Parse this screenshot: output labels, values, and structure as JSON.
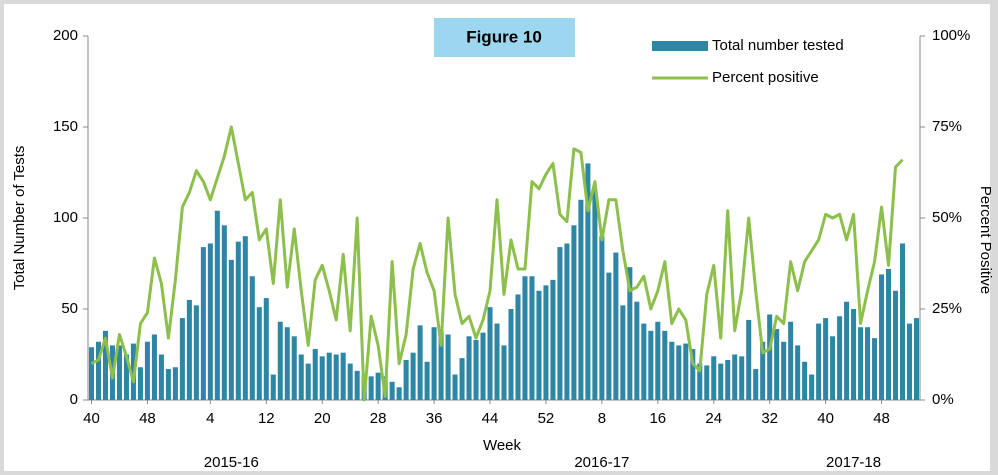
{
  "chart_data": {
    "type": "bar",
    "figure_label": "Figure 10",
    "x_label": "Week",
    "y_label": "Total Number of Tests",
    "y2_label": "Percent Positive",
    "season_labels": [
      "2015-16",
      "2016-17",
      "2017-18"
    ],
    "categories": [
      "40",
      null,
      null,
      null,
      null,
      null,
      null,
      null,
      "48",
      null,
      null,
      null,
      null,
      null,
      null,
      null,
      null,
      "4",
      null,
      null,
      null,
      null,
      null,
      null,
      null,
      "12",
      null,
      null,
      null,
      null,
      null,
      null,
      null,
      "20",
      null,
      null,
      null,
      null,
      null,
      null,
      null,
      "28",
      null,
      null,
      null,
      null,
      null,
      null,
      null,
      "36",
      null,
      null,
      null,
      null,
      null,
      null,
      null,
      "44",
      null,
      null,
      null,
      null,
      null,
      null,
      null,
      "52",
      null,
      null,
      null,
      null,
      null,
      null,
      null,
      "8",
      null,
      null,
      null,
      null,
      null,
      null,
      null,
      "16",
      null,
      null,
      null,
      null,
      null,
      null,
      null,
      "24",
      null,
      null,
      null,
      null,
      null,
      null,
      null,
      "32",
      null,
      null,
      null,
      null,
      null,
      null,
      null,
      "40",
      null,
      null,
      null,
      null,
      null,
      null,
      null,
      "48",
      null,
      null,
      null,
      null,
      null
    ],
    "series": [
      {
        "name": "Total number tested",
        "type": "bar",
        "color": "#2e86a5",
        "values": [
          29,
          32,
          38,
          30,
          30,
          25,
          31,
          18,
          32,
          36,
          25,
          17,
          18,
          45,
          55,
          52,
          84,
          86,
          104,
          96,
          77,
          87,
          90,
          68,
          51,
          56,
          14,
          43,
          40,
          35,
          25,
          20,
          28,
          24,
          26,
          25,
          26,
          20,
          16,
          14,
          13,
          15,
          13,
          10,
          7,
          22,
          26,
          41,
          21,
          40,
          38,
          36,
          14,
          23,
          35,
          33,
          37,
          51,
          42,
          30,
          50,
          58,
          68,
          68,
          60,
          63,
          66,
          84,
          86,
          96,
          110,
          130,
          115,
          90,
          70,
          81,
          52,
          73,
          54,
          42,
          38,
          43,
          38,
          32,
          30,
          31,
          28,
          20,
          19,
          24,
          20,
          22,
          25,
          24,
          44,
          17,
          32,
          47,
          39,
          32,
          43,
          30,
          21,
          14,
          42,
          45,
          35,
          46,
          54,
          50,
          40,
          40,
          34,
          69,
          72,
          60,
          86,
          42,
          45
        ]
      },
      {
        "name": "Percent positive",
        "type": "line",
        "axis": "y2",
        "color": "#8cbf4b",
        "values": [
          10,
          11,
          17,
          6,
          18,
          12,
          5,
          21,
          24,
          39,
          32,
          17,
          33,
          53,
          57,
          63,
          60,
          55,
          61,
          67,
          75,
          65,
          55,
          57,
          44,
          47,
          32,
          55,
          31,
          47,
          30,
          15,
          33,
          37,
          30,
          22,
          40,
          19,
          50,
          0,
          23,
          15,
          1,
          38,
          10,
          18,
          36,
          43,
          35,
          30,
          15,
          50,
          29,
          21,
          23,
          17,
          22,
          30,
          55,
          29,
          44,
          36,
          36,
          60,
          58,
          62,
          65,
          51,
          49,
          69,
          68,
          52,
          60,
          44,
          55,
          55,
          41,
          30,
          31,
          34,
          25,
          30,
          38,
          21,
          25,
          22,
          10,
          8,
          29,
          37,
          17,
          52,
          19,
          30,
          50,
          30,
          13,
          14,
          23,
          21,
          38,
          30,
          38,
          41,
          44,
          51,
          50,
          51,
          44,
          51,
          21,
          30,
          38,
          53,
          37,
          64,
          66,
          null,
          null
        ]
      }
    ],
    "ylim": [
      0,
      200
    ],
    "yticks": [
      0,
      50,
      100,
      150,
      200
    ],
    "y2lim": [
      0,
      100
    ],
    "y2ticks": [
      {
        "value": 0,
        "label": "0%"
      },
      {
        "value": 25,
        "label": "25%"
      },
      {
        "value": 50,
        "label": "50%"
      },
      {
        "value": 75,
        "label": "75%"
      },
      {
        "value": 100,
        "label": "100%"
      }
    ],
    "grid": false,
    "legend": "top-right"
  }
}
